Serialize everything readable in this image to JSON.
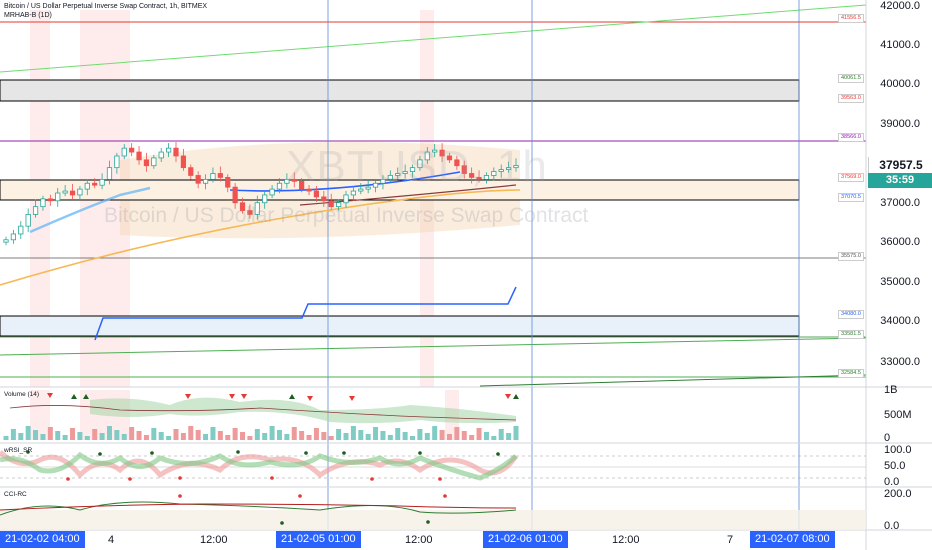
{
  "header": {
    "title_line": "Bitcoin / US Dollar Perpetual Inverse Swap Contract, 1h, BITMEX",
    "indicator_line": "MRHAB-B (1D)"
  },
  "watermark": {
    "symbol": "XBTUSD, 1h",
    "description": "Bitcoin / US Dollar Perpetual Inverse Swap Contract"
  },
  "price_axis": {
    "labels": [
      "42000.0",
      "41000.0",
      "40000.0",
      "39000.0",
      "38000.0",
      "37000.0",
      "36000.0",
      "35000.0",
      "34000.0",
      "33000.0"
    ],
    "last_price": "37957.5",
    "countdown": "35:59"
  },
  "levels": [
    "41556.5",
    "40061.5",
    "39563.0",
    "38566.0",
    "37569.0",
    "37070.5",
    "35575.0",
    "34080.0",
    "33581.5",
    "32584.5"
  ],
  "panes": {
    "volume": {
      "name": "Volume (14)",
      "labels": [
        "1B",
        "500M",
        "0"
      ]
    },
    "wrsi": {
      "name": "wRSI_SR",
      "labels": [
        "100.0",
        "50.0",
        "0.0"
      ]
    },
    "cci": {
      "name": "CCI-RC",
      "labels": [
        "200.0",
        "0.0"
      ]
    }
  },
  "time_axis": {
    "tag_start": "21-02-02  04:00",
    "label_4": "4",
    "label_1200a": "12:00",
    "tag_mid": "21-02-05  01:00",
    "label_1200b": "12:00",
    "tag_6": "21-02-06  01:00",
    "label_1200c": "12:00",
    "label_7": "7",
    "tag_end": "21-02-07  08:00"
  },
  "colors": {
    "up": "#26a69a",
    "down": "#ef5350",
    "accent": "#2962ff",
    "trend_green": "#4caf50"
  },
  "chart_data": {
    "type": "candlestick",
    "symbol": "XBTUSD",
    "interval": "1h",
    "ylim": [
      32300,
      42200
    ],
    "close_series": [
      36050,
      36200,
      36400,
      36700,
      36900,
      37100,
      37050,
      37250,
      37300,
      37200,
      37350,
      37500,
      37450,
      37600,
      37900,
      38200,
      38400,
      38300,
      38100,
      37950,
      38150,
      38300,
      38400,
      38200,
      37900,
      37700,
      37500,
      37600,
      37750,
      37650,
      37400,
      37000,
      36800,
      36700,
      37000,
      37200,
      37350,
      37500,
      37600,
      37550,
      37350,
      37300,
      37150,
      37050,
      36900,
      37000,
      37200,
      37300,
      37350,
      37400,
      37500,
      37600,
      37700,
      37750,
      37800,
      37900,
      38100,
      38300,
      38350,
      38200,
      38100,
      37950,
      37750,
      37650,
      37600,
      37700,
      37800,
      37850,
      37900,
      37957.5
    ],
    "last_price": 37957.5
  }
}
